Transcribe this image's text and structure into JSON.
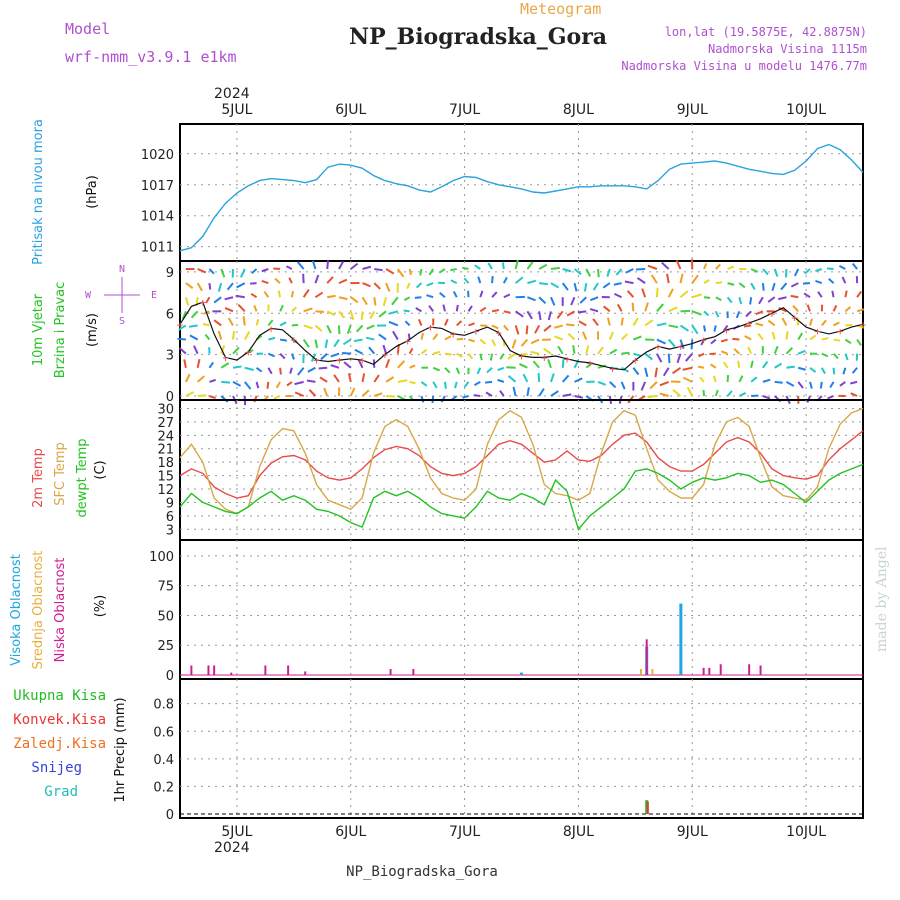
{
  "header": {
    "model_label": "Model",
    "model_name": "wrf-nmm_v3.9.1 e1km",
    "product": "Meteogram",
    "station": "NP_Biogradska_Gora",
    "lonlat": "lon,lat (19.5875E, 42.8875N)",
    "elevation": "Nadmorska Visina 1115m",
    "model_elevation": "Nadmorska Visina u modelu 1476.77m",
    "year": "2024",
    "footer_station": "NP_Biogradska_Gora",
    "credit": "made by Angel"
  },
  "colors": {
    "pressure": "#2aa3e0",
    "temp2m": "#e84c4c",
    "sfc": "#d8a848",
    "dewpt": "#22c322",
    "visoka": "#1ea6e0",
    "srednja": "#e8b040",
    "niska": "#cc1f90",
    "ukupna": "#22bb22",
    "konvek": "#ee3333",
    "zaledj": "#f07020",
    "snijeg": "#3344dd",
    "grad": "#22bbbb",
    "purple": "#b050d0",
    "orange": "#e8a848"
  },
  "chart_data": [
    {
      "panel": "pressure",
      "type": "line",
      "ylabel": [
        "Pritisak na nivou mora",
        "(hPa)"
      ],
      "yticks": [
        1011,
        1014,
        1017,
        1020
      ],
      "ylim": [
        1010,
        1022.5
      ],
      "xlim": [
        4.5,
        10.5
      ],
      "xticks": [
        "5JUL",
        "6JUL",
        "7JUL",
        "8JUL",
        "9JUL",
        "10JUL"
      ],
      "series": [
        {
          "x": [
            4.5,
            4.6,
            4.7,
            4.8,
            4.9,
            5.0,
            5.1,
            5.2,
            5.3,
            5.4,
            5.5,
            5.6,
            5.7,
            5.8,
            5.9,
            6.0,
            6.1,
            6.2,
            6.3,
            6.4,
            6.5,
            6.6,
            6.7,
            6.8,
            6.9,
            7.0,
            7.1,
            7.2,
            7.3,
            7.4,
            7.5,
            7.6,
            7.7,
            7.8,
            7.9,
            8.0,
            8.1,
            8.2,
            8.3,
            8.4,
            8.5,
            8.6,
            8.7,
            8.8,
            8.9,
            9.0,
            9.1,
            9.2,
            9.3,
            9.4,
            9.5,
            9.6,
            9.7,
            9.8,
            9.9,
            10.0,
            10.1,
            10.2,
            10.3,
            10.4,
            10.5
          ],
          "y": [
            1010.6,
            1010.9,
            1012.0,
            1013.8,
            1015.2,
            1016.2,
            1016.9,
            1017.4,
            1017.6,
            1017.5,
            1017.4,
            1017.2,
            1017.5,
            1018.7,
            1019.0,
            1018.9,
            1018.6,
            1017.9,
            1017.4,
            1017.1,
            1016.9,
            1016.5,
            1016.3,
            1016.8,
            1017.4,
            1017.8,
            1017.7,
            1017.3,
            1017.0,
            1016.8,
            1016.6,
            1016.3,
            1016.2,
            1016.4,
            1016.6,
            1016.8,
            1016.8,
            1016.9,
            1016.9,
            1016.9,
            1016.8,
            1016.6,
            1017.4,
            1018.5,
            1019.0,
            1019.1,
            1019.2,
            1019.3,
            1019.1,
            1018.8,
            1018.5,
            1018.3,
            1018.1,
            1018.0,
            1018.4,
            1019.3,
            1020.5,
            1020.9,
            1020.4,
            1019.4,
            1018.2
          ]
        }
      ]
    },
    {
      "panel": "wind",
      "type": "line",
      "ylabel": [
        "10m Vjetar",
        "Brzina i Pravac",
        "(m/s)"
      ],
      "compass": {
        "n": "N",
        "s": "S",
        "w": "W",
        "e": "E"
      },
      "yticks": [
        0,
        3,
        6,
        9
      ],
      "ylim": [
        0,
        9.5
      ],
      "series": [
        {
          "name": "speed",
          "x": [
            4.5,
            4.6,
            4.7,
            4.8,
            4.9,
            5.0,
            5.1,
            5.2,
            5.3,
            5.4,
            5.5,
            5.6,
            5.7,
            5.8,
            5.9,
            6.0,
            6.1,
            6.2,
            6.3,
            6.4,
            6.5,
            6.6,
            6.7,
            6.8,
            6.9,
            7.0,
            7.1,
            7.2,
            7.3,
            7.4,
            7.5,
            7.6,
            7.7,
            7.8,
            7.9,
            8.0,
            8.1,
            8.2,
            8.3,
            8.4,
            8.5,
            8.6,
            8.7,
            8.8,
            8.9,
            9.0,
            9.1,
            9.2,
            9.3,
            9.4,
            9.5,
            9.6,
            9.7,
            9.8,
            9.9,
            10.0,
            10.1,
            10.2,
            10.3,
            10.4,
            10.5
          ],
          "y": [
            5.2,
            6.5,
            6.8,
            4.5,
            2.8,
            2.6,
            3.2,
            4.4,
            4.9,
            4.8,
            4.1,
            3.3,
            2.6,
            2.5,
            2.6,
            2.7,
            2.6,
            2.3,
            3.0,
            3.6,
            4.0,
            4.6,
            5.0,
            4.9,
            4.5,
            4.4,
            4.7,
            5.0,
            4.6,
            3.3,
            2.9,
            2.8,
            2.8,
            2.9,
            2.7,
            2.5,
            2.4,
            2.2,
            2.0,
            1.9,
            2.6,
            3.2,
            3.6,
            3.4,
            3.6,
            3.8,
            4.1,
            4.3,
            4.8,
            5.0,
            5.3,
            5.6,
            6.0,
            6.4,
            5.7,
            5.0,
            4.7,
            4.5,
            4.7,
            5.0,
            5.2
          ]
        }
      ]
    },
    {
      "panel": "temperature",
      "type": "line",
      "ylabel": [
        "2m Temp",
        "SFC Temp",
        "dewpt Temp",
        "(C)"
      ],
      "yticks": [
        3,
        6,
        9,
        12,
        15,
        18,
        21,
        24,
        27,
        30
      ],
      "ylim": [
        1.5,
        31
      ],
      "series": [
        {
          "name": "2m Temp",
          "x": [
            4.5,
            4.6,
            4.7,
            4.8,
            4.9,
            5.0,
            5.1,
            5.2,
            5.3,
            5.4,
            5.5,
            5.6,
            5.7,
            5.8,
            5.9,
            6.0,
            6.1,
            6.2,
            6.3,
            6.4,
            6.5,
            6.6,
            6.7,
            6.8,
            6.9,
            7.0,
            7.1,
            7.2,
            7.3,
            7.4,
            7.5,
            7.6,
            7.7,
            7.8,
            7.9,
            8.0,
            8.1,
            8.2,
            8.3,
            8.4,
            8.5,
            8.6,
            8.7,
            8.8,
            8.9,
            9.0,
            9.1,
            9.2,
            9.3,
            9.4,
            9.5,
            9.6,
            9.7,
            9.8,
            9.9,
            10.0,
            10.1,
            10.2,
            10.3,
            10.4,
            10.5
          ],
          "y": [
            15.0,
            16.5,
            15.5,
            12.5,
            11.0,
            10.0,
            10.5,
            15.0,
            17.8,
            19.2,
            19.5,
            18.5,
            16.0,
            14.5,
            14.0,
            14.5,
            16.5,
            19.0,
            20.8,
            21.5,
            21.0,
            19.5,
            17.0,
            15.5,
            15.0,
            15.5,
            17.0,
            19.5,
            22.0,
            22.8,
            22.0,
            20.0,
            18.0,
            18.5,
            20.5,
            18.5,
            18.2,
            19.5,
            22.0,
            24.0,
            24.5,
            22.5,
            19.0,
            17.0,
            16.0,
            16.0,
            17.5,
            20.0,
            22.5,
            23.5,
            22.5,
            20.0,
            16.5,
            15.0,
            14.5,
            14.2,
            15.0,
            18.5,
            21.0,
            23.0,
            25.0
          ]
        },
        {
          "name": "SFC Temp",
          "x": [
            4.5,
            4.6,
            4.7,
            4.8,
            4.9,
            5.0,
            5.1,
            5.2,
            5.3,
            5.4,
            5.5,
            5.6,
            5.7,
            5.8,
            5.9,
            6.0,
            6.1,
            6.2,
            6.3,
            6.4,
            6.5,
            6.6,
            6.7,
            6.8,
            6.9,
            7.0,
            7.1,
            7.2,
            7.3,
            7.4,
            7.5,
            7.6,
            7.7,
            7.8,
            7.9,
            8.0,
            8.1,
            8.2,
            8.3,
            8.4,
            8.5,
            8.6,
            8.7,
            8.8,
            8.9,
            9.0,
            9.1,
            9.2,
            9.3,
            9.4,
            9.5,
            9.6,
            9.7,
            9.8,
            9.9,
            10.0,
            10.1,
            10.2,
            10.3,
            10.4,
            10.5
          ],
          "y": [
            19.0,
            22.0,
            18.0,
            10.0,
            7.5,
            6.5,
            8.0,
            17.0,
            23.0,
            25.5,
            25.0,
            20.0,
            13.0,
            9.5,
            8.5,
            7.5,
            10.0,
            20.0,
            26.0,
            27.5,
            26.0,
            21.0,
            14.5,
            11.0,
            10.0,
            9.5,
            12.0,
            22.0,
            27.5,
            29.5,
            28.0,
            22.0,
            13.0,
            11.0,
            10.5,
            9.5,
            11.0,
            20.0,
            27.0,
            29.5,
            28.5,
            21.0,
            14.0,
            11.5,
            10.0,
            10.0,
            13.0,
            22.0,
            27.0,
            28.0,
            26.0,
            19.0,
            12.5,
            10.5,
            10.0,
            9.5,
            12.5,
            21.0,
            26.5,
            29.0,
            30.0
          ]
        },
        {
          "name": "dewpt Temp",
          "x": [
            4.5,
            4.6,
            4.7,
            4.8,
            4.9,
            5.0,
            5.1,
            5.2,
            5.3,
            5.4,
            5.5,
            5.6,
            5.7,
            5.8,
            5.9,
            6.0,
            6.1,
            6.2,
            6.3,
            6.4,
            6.5,
            6.6,
            6.7,
            6.8,
            6.9,
            7.0,
            7.1,
            7.2,
            7.3,
            7.4,
            7.5,
            7.6,
            7.7,
            7.8,
            7.9,
            8.0,
            8.1,
            8.2,
            8.3,
            8.4,
            8.5,
            8.6,
            8.7,
            8.8,
            8.9,
            9.0,
            9.1,
            9.2,
            9.3,
            9.4,
            9.5,
            9.6,
            9.7,
            9.8,
            9.9,
            10.0,
            10.1,
            10.2,
            10.3,
            10.4,
            10.5
          ],
          "y": [
            8.0,
            11.0,
            9.0,
            8.0,
            7.0,
            6.5,
            8.0,
            10.0,
            11.5,
            9.5,
            10.5,
            9.5,
            7.5,
            7.0,
            6.0,
            4.5,
            3.5,
            10.0,
            11.5,
            10.5,
            11.5,
            10.0,
            8.0,
            6.5,
            6.0,
            5.5,
            8.0,
            11.5,
            10.0,
            9.5,
            11.0,
            10.0,
            8.5,
            14.0,
            11.5,
            3.0,
            6.0,
            8.0,
            10.0,
            12.0,
            16.0,
            16.5,
            15.5,
            14.0,
            12.0,
            13.5,
            14.5,
            14.0,
            14.5,
            15.5,
            15.0,
            13.5,
            14.0,
            13.0,
            11.0,
            9.0,
            11.5,
            14.0,
            15.5,
            16.5,
            17.5
          ]
        }
      ]
    },
    {
      "panel": "cloud",
      "type": "bar",
      "ylabel": [
        "Visoka Oblacnost",
        "Srednja Oblacnost",
        "Niska Oblacnost",
        "(%)"
      ],
      "yticks": [
        0,
        25,
        50,
        75,
        100
      ],
      "ylim": [
        0,
        110
      ],
      "series": [
        {
          "name": "Visoka Oblacnost",
          "x": [
            7.5,
            8.6,
            8.9
          ],
          "y": [
            2,
            24,
            60
          ]
        },
        {
          "name": "Srednja Oblacnost",
          "x": [
            8.55,
            8.65
          ],
          "y": [
            5,
            5
          ]
        },
        {
          "name": "Niska Oblacnost",
          "x": [
            4.6,
            4.75,
            4.8,
            4.95,
            5.25,
            5.45,
            5.6,
            6.35,
            6.55,
            8.6,
            9.1,
            9.15,
            9.25,
            9.5,
            9.6
          ],
          "y": [
            8,
            8,
            8,
            2,
            8,
            8,
            3,
            5,
            5,
            30,
            6,
            6,
            9,
            9,
            8
          ]
        }
      ]
    },
    {
      "panel": "precip",
      "type": "bar",
      "ylabel": [
        "1hr Precip (mm)"
      ],
      "legend": [
        "Ukupna Kisa",
        "Konvek.Kisa",
        "Zaledj.Kisa",
        "Snijeg",
        "Grad"
      ],
      "yticks": [
        0,
        0.2,
        0.4,
        0.6,
        0.8
      ],
      "ylim": [
        0,
        0.95
      ],
      "series": [
        {
          "name": "Ukupna Kisa",
          "x": [
            8.6
          ],
          "y": [
            0.1
          ]
        },
        {
          "name": "Konvek.Kisa",
          "x": [
            8.61
          ],
          "y": [
            0.09
          ]
        }
      ]
    }
  ]
}
